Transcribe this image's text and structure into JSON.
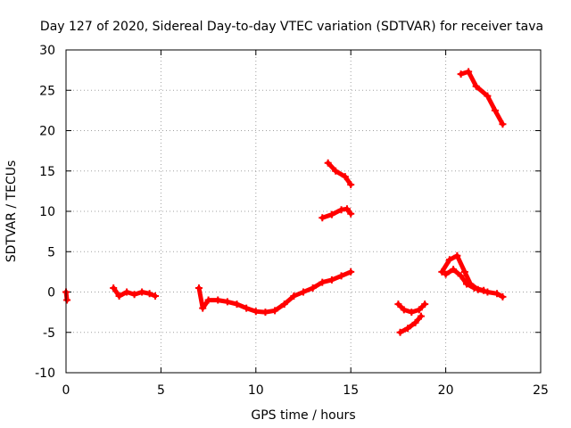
{
  "chart_data": {
    "type": "scatter",
    "title": "Day 127 of 2020, Sidereal Day-to-day VTEC variation (SDTVAR) for receiver tava",
    "xlabel": "GPS time / hours",
    "ylabel": "SDTVAR / TECUs",
    "xlim": [
      0,
      25
    ],
    "ylim": [
      -10,
      30
    ],
    "xticks": [
      "0",
      "5",
      "10",
      "15",
      "20",
      "25"
    ],
    "yticks": [
      "-10",
      "-5",
      "0",
      "5",
      "10",
      "15",
      "20",
      "25",
      "30"
    ],
    "grid": true,
    "series_color": "#ff0000",
    "series": [
      {
        "name": "seg-0",
        "points": [
          [
            0.0,
            0.0
          ],
          [
            0.05,
            -1.0
          ]
        ]
      },
      {
        "name": "seg-1",
        "points": [
          [
            2.5,
            0.5
          ],
          [
            2.8,
            -0.5
          ],
          [
            3.2,
            0.0
          ],
          [
            3.6,
            -0.3
          ],
          [
            4.0,
            0.0
          ],
          [
            4.4,
            -0.2
          ],
          [
            4.7,
            -0.5
          ]
        ]
      },
      {
        "name": "seg-2",
        "points": [
          [
            7.0,
            0.5
          ],
          [
            7.2,
            -2.0
          ],
          [
            7.5,
            -1.0
          ],
          [
            8.0,
            -1.0
          ],
          [
            8.5,
            -1.2
          ],
          [
            9.0,
            -1.5
          ],
          [
            9.5,
            -2.0
          ],
          [
            10.0,
            -2.4
          ],
          [
            10.5,
            -2.5
          ],
          [
            11.0,
            -2.3
          ],
          [
            11.5,
            -1.5
          ],
          [
            12.0,
            -0.5
          ],
          [
            12.5,
            0.0
          ],
          [
            13.0,
            0.5
          ],
          [
            13.5,
            1.2
          ],
          [
            14.0,
            1.5
          ],
          [
            14.5,
            2.0
          ],
          [
            15.0,
            2.5
          ]
        ]
      },
      {
        "name": "seg-3",
        "points": [
          [
            13.8,
            16.0
          ],
          [
            14.2,
            15.0
          ],
          [
            14.7,
            14.3
          ],
          [
            15.0,
            13.3
          ]
        ]
      },
      {
        "name": "seg-4",
        "points": [
          [
            13.5,
            9.2
          ],
          [
            14.0,
            9.6
          ],
          [
            14.5,
            10.2
          ],
          [
            14.8,
            10.3
          ],
          [
            15.0,
            9.7
          ]
        ]
      },
      {
        "name": "seg-5",
        "points": [
          [
            17.5,
            -1.5
          ],
          [
            17.8,
            -2.2
          ],
          [
            18.2,
            -2.5
          ],
          [
            18.6,
            -2.2
          ],
          [
            18.9,
            -1.5
          ]
        ]
      },
      {
        "name": "seg-6",
        "points": [
          [
            17.6,
            -5.0
          ],
          [
            18.0,
            -4.5
          ],
          [
            18.4,
            -3.8
          ],
          [
            18.7,
            -3.0
          ]
        ]
      },
      {
        "name": "seg-7",
        "points": [
          [
            19.8,
            2.5
          ],
          [
            20.2,
            4.0
          ],
          [
            20.6,
            4.5
          ],
          [
            21.0,
            2.5
          ],
          [
            21.3,
            1.0
          ],
          [
            21.7,
            0.3
          ],
          [
            22.2,
            0.0
          ],
          [
            22.7,
            -0.2
          ],
          [
            23.0,
            -0.6
          ]
        ]
      },
      {
        "name": "seg-8",
        "points": [
          [
            20.0,
            2.2
          ],
          [
            20.4,
            2.8
          ],
          [
            20.8,
            2.0
          ],
          [
            21.1,
            1.0
          ],
          [
            21.5,
            0.5
          ],
          [
            22.0,
            0.2
          ]
        ]
      },
      {
        "name": "seg-9",
        "points": [
          [
            20.8,
            27.0
          ],
          [
            21.2,
            27.3
          ],
          [
            21.6,
            25.5
          ],
          [
            22.2,
            24.3
          ],
          [
            22.6,
            22.5
          ],
          [
            23.0,
            20.8
          ]
        ]
      }
    ]
  }
}
